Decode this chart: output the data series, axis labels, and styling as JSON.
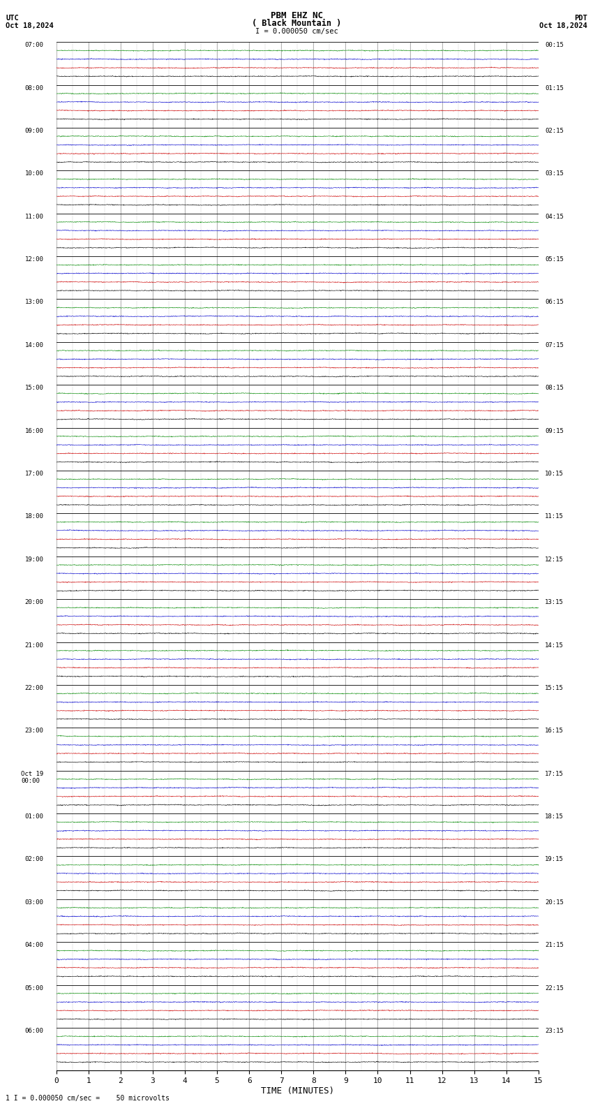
{
  "title_line1": "PBM EHZ NC",
  "title_line2": "( Black Mountain )",
  "scale_label": "I = 0.000050 cm/sec",
  "utc_label": "UTC",
  "utc_date": "Oct 18,2024",
  "pdt_label": "PDT",
  "pdt_date": "Oct 18,2024",
  "footnote": "1 I = 0.000050 cm/sec =    50 microvolts",
  "xlabel": "TIME (MINUTES)",
  "x_ticks": [
    0,
    1,
    2,
    3,
    4,
    5,
    6,
    7,
    8,
    9,
    10,
    11,
    12,
    13,
    14,
    15
  ],
  "utc_times": [
    "07:00",
    "08:00",
    "09:00",
    "10:00",
    "11:00",
    "12:00",
    "13:00",
    "14:00",
    "15:00",
    "16:00",
    "17:00",
    "18:00",
    "19:00",
    "20:00",
    "21:00",
    "22:00",
    "23:00",
    "Oct 19\n00:00",
    "01:00",
    "02:00",
    "03:00",
    "04:00",
    "05:00",
    "06:00"
  ],
  "pdt_times": [
    "00:15",
    "01:15",
    "02:15",
    "03:15",
    "04:15",
    "05:15",
    "06:15",
    "07:15",
    "08:15",
    "09:15",
    "10:15",
    "11:15",
    "12:15",
    "13:15",
    "14:15",
    "15:15",
    "16:15",
    "17:15",
    "18:15",
    "19:15",
    "20:15",
    "21:15",
    "22:15",
    "23:15"
  ],
  "n_rows": 24,
  "traces_per_row": 4,
  "trace_colors": [
    "#000000",
    "#cc0000",
    "#0000cc",
    "#008800"
  ],
  "bg_color": "#ffffff",
  "grid_major_color": "#999999",
  "grid_minor_color": "#cccccc",
  "amplitude": 0.012,
  "noise_seed": 42
}
